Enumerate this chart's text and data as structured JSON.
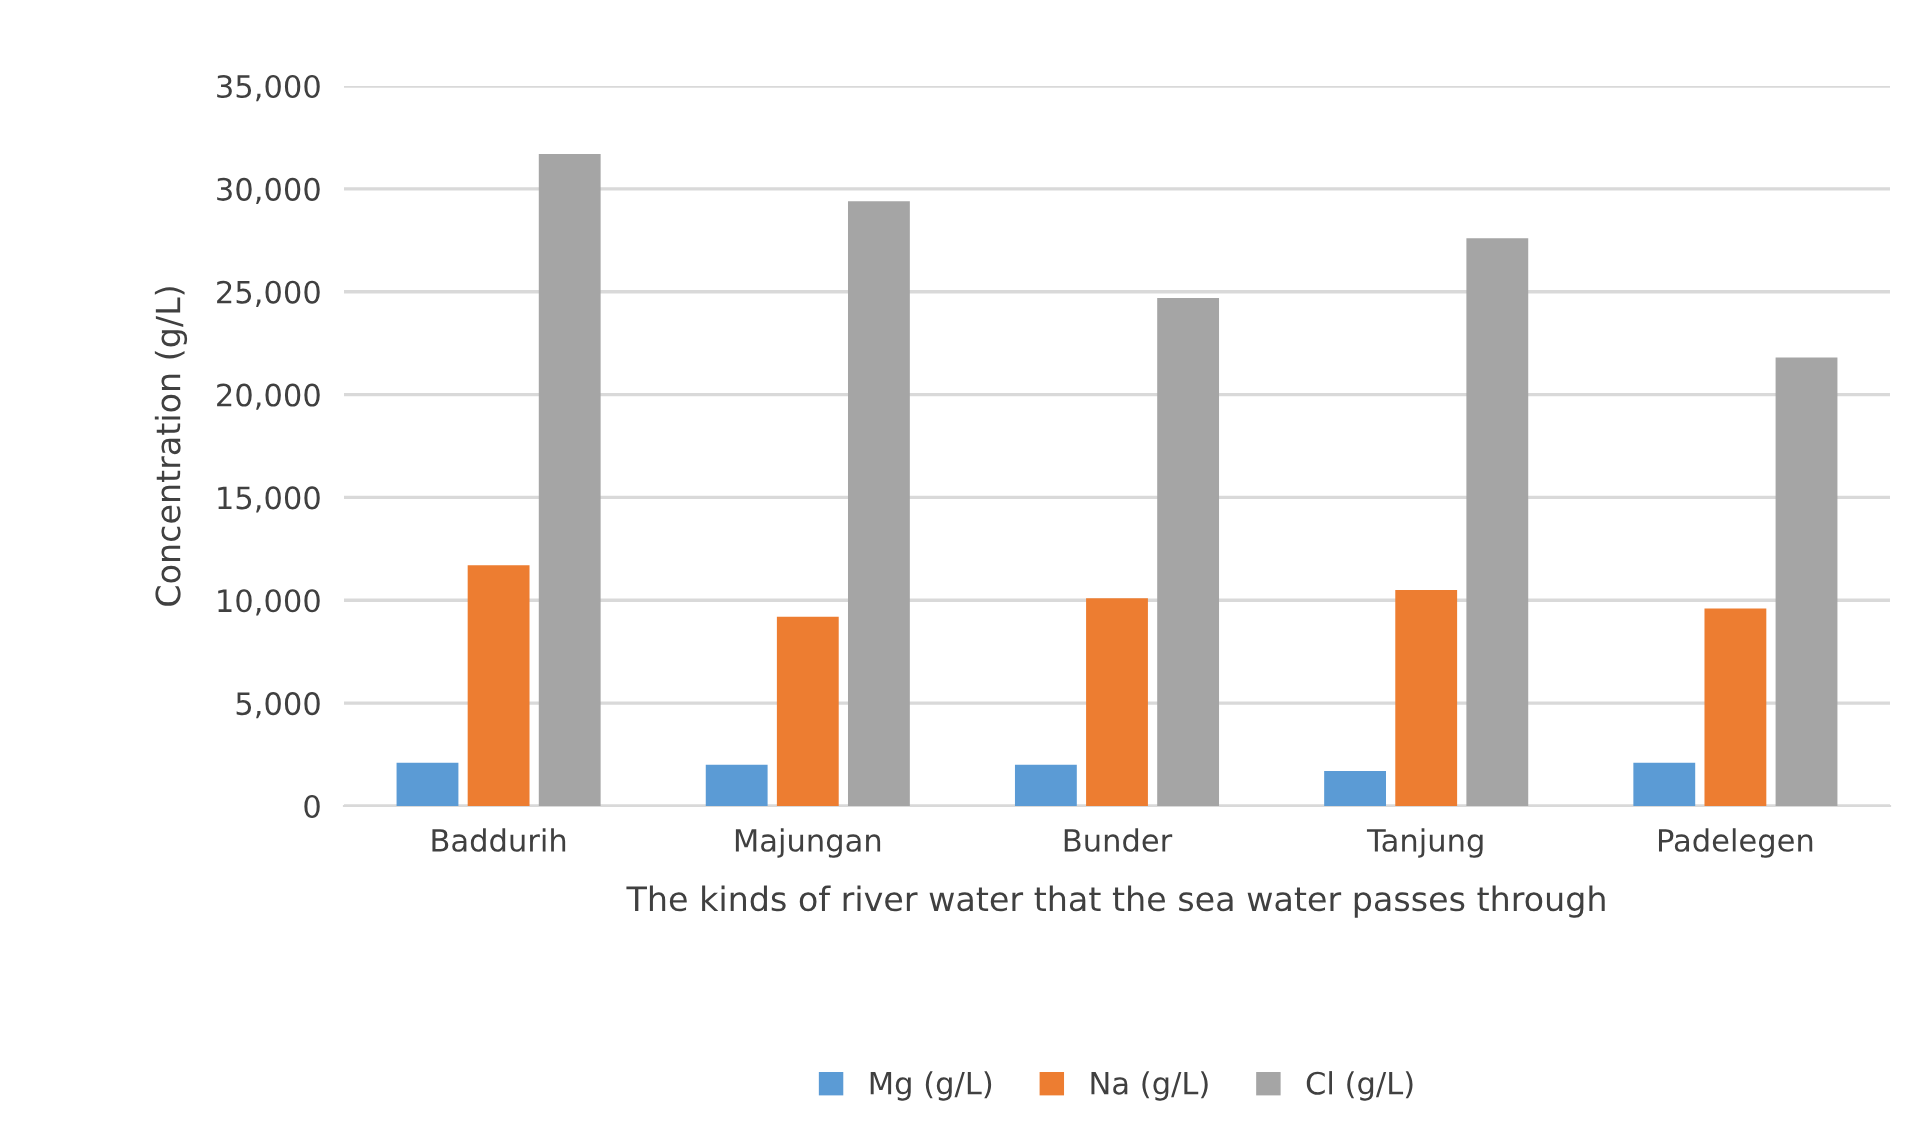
{
  "chart_data": {
    "type": "bar",
    "xlabel": "The kinds of river water that the sea water passes through",
    "ylabel": "Concentration (g/L)",
    "categories": [
      "Baddurih",
      "Majungan",
      "Bunder",
      "Tanjung",
      "Padelegen"
    ],
    "series": [
      {
        "name": "Mg (g/L)",
        "color": "#5b9bd5",
        "values": [
          2100,
          2000,
          2000,
          1700,
          2100
        ]
      },
      {
        "name": "Na (g/L)",
        "color": "#ed7d31",
        "values": [
          11700,
          9200,
          10100,
          10500,
          9600
        ]
      },
      {
        "name": "Cl (g/L)",
        "color": "#a5a5a5",
        "values": [
          31700,
          29400,
          24700,
          27600,
          21800
        ]
      }
    ],
    "ylim": [
      0,
      35000
    ],
    "yticks": [
      {
        "value": 0,
        "label": "0"
      },
      {
        "value": 5000,
        "label": "5,000"
      },
      {
        "value": 10000,
        "label": "10,000"
      },
      {
        "value": 15000,
        "label": "15,000"
      },
      {
        "value": 20000,
        "label": "20,000"
      },
      {
        "value": 25000,
        "label": "25,000"
      },
      {
        "value": 30000,
        "label": "30,000"
      },
      {
        "value": 35000,
        "label": "35,000"
      }
    ],
    "grid": "y",
    "legend": "bottom"
  }
}
